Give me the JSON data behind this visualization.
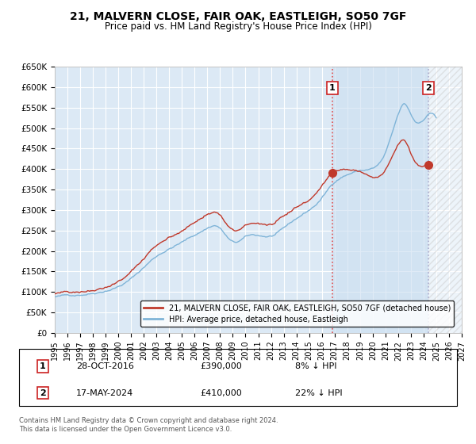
{
  "title1": "21, MALVERN CLOSE, FAIR OAK, EASTLEIGH, SO50 7GF",
  "title2": "Price paid vs. HM Land Registry's House Price Index (HPI)",
  "ylabel_ticks": [
    "£0",
    "£50K",
    "£100K",
    "£150K",
    "£200K",
    "£250K",
    "£300K",
    "£350K",
    "£400K",
    "£450K",
    "£500K",
    "£550K",
    "£600K",
    "£650K"
  ],
  "ytick_values": [
    0,
    50000,
    100000,
    150000,
    200000,
    250000,
    300000,
    350000,
    400000,
    450000,
    500000,
    550000,
    600000,
    650000
  ],
  "hpi_color": "#7fb4d8",
  "price_color": "#c0392b",
  "dashed_line1_color": "#e05050",
  "dashed_line2_color": "#aaaacc",
  "background_plot": "#dce9f5",
  "background_fig": "#ffffff",
  "grid_color": "#ffffff",
  "shade_between_color": "#c8ddf0",
  "marker1_x": 2016.83,
  "marker2_x": 2024.38,
  "marker1_price": 390000,
  "marker2_price": 410000,
  "legend_label1": "21, MALVERN CLOSE, FAIR OAK, EASTLEIGH, SO50 7GF (detached house)",
  "legend_label2": "HPI: Average price, detached house, Eastleigh",
  "annotation1": "28-OCT-2016",
  "annotation1_price": "£390,000",
  "annotation1_hpi": "8% ↓ HPI",
  "annotation2": "17-MAY-2024",
  "annotation2_price": "£410,000",
  "annotation2_hpi": "22% ↓ HPI",
  "footnote": "Contains HM Land Registry data © Crown copyright and database right 2024.\nThis data is licensed under the Open Government Licence v3.0.",
  "xmin": 1995,
  "xmax": 2027,
  "ymin": 0,
  "ymax": 650000
}
